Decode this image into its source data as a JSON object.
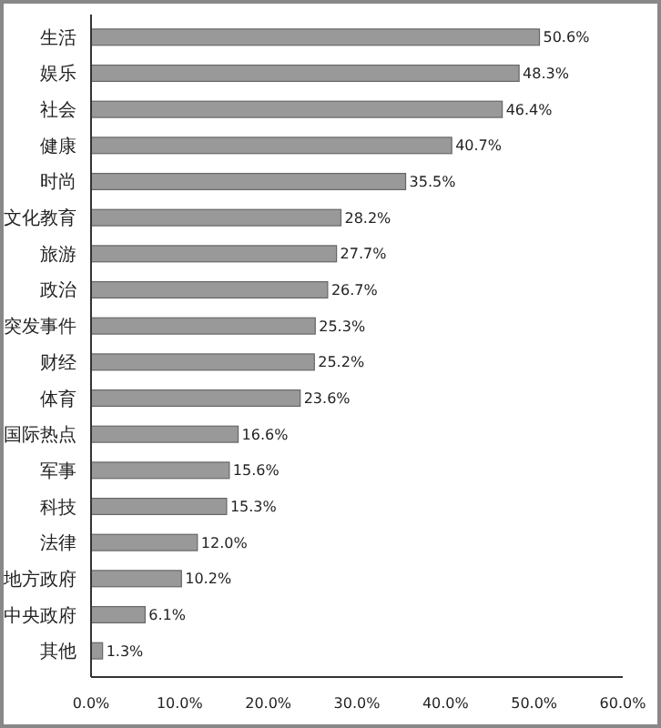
{
  "chart_data": {
    "type": "bar",
    "orientation": "horizontal",
    "categories": [
      "生活",
      "娱乐",
      "社会",
      "健康",
      "时尚",
      "文化教育",
      "旅游",
      "政治",
      "突发事件",
      "财经",
      "体育",
      "国际热点",
      "军事",
      "科技",
      "法律",
      "地方政府",
      "中央政府",
      "其他"
    ],
    "values": [
      50.6,
      48.3,
      46.4,
      40.7,
      35.5,
      28.2,
      27.7,
      26.7,
      25.3,
      25.2,
      23.6,
      16.6,
      15.6,
      15.3,
      12.0,
      10.2,
      6.1,
      1.3
    ],
    "value_labels": [
      "50.6%",
      "48.3%",
      "46.4%",
      "40.7%",
      "35.5%",
      "28.2%",
      "27.7%",
      "26.7%",
      "25.3%",
      "25.2%",
      "23.6%",
      "16.6%",
      "15.6%",
      "15.3%",
      "12.0%",
      "10.2%",
      "6.1%",
      "1.3%"
    ],
    "color": "#999999",
    "xlim": [
      0,
      60
    ],
    "xticks": [
      {
        "value": 0,
        "label": "0.0%"
      },
      {
        "value": 10,
        "label": "10.0%"
      },
      {
        "value": 20,
        "label": "20.0%"
      },
      {
        "value": 30,
        "label": "30.0%"
      },
      {
        "value": 40,
        "label": "40.0%"
      },
      {
        "value": 50,
        "label": "50.0%"
      },
      {
        "value": 60,
        "label": "60.0%"
      }
    ],
    "grid": false
  }
}
